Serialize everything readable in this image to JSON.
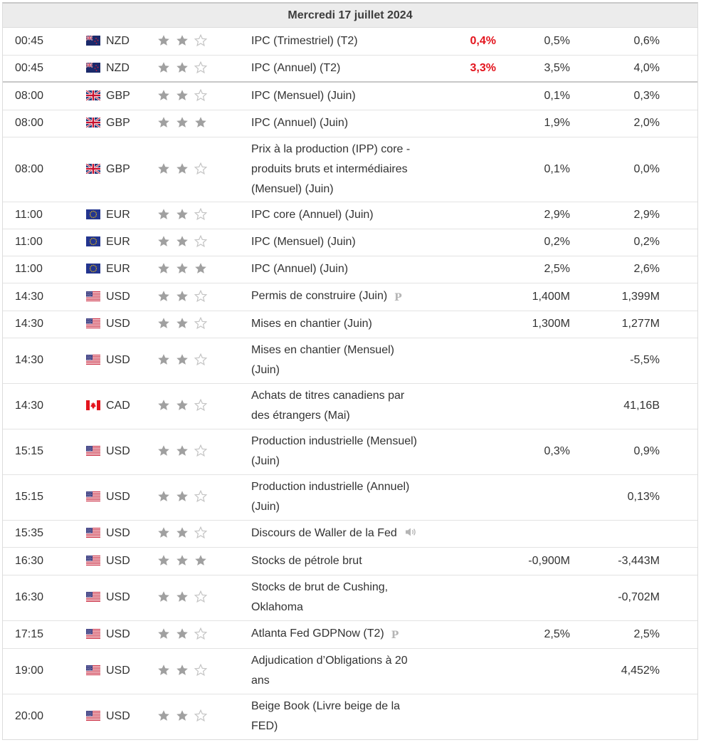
{
  "day_header": "Mercredi 17 juillet 2024",
  "events": [
    {
      "time": "00:45",
      "currency": "NZD",
      "flag": "flag-nz",
      "stars": 2,
      "event": "IPC (Trimestriel) (T2)",
      "actual": "0,4%",
      "forecast": "0,5%",
      "previous": "0,6%"
    },
    {
      "time": "00:45",
      "currency": "NZD",
      "flag": "flag-nz",
      "stars": 2,
      "event": "IPC (Annuel) (T2)",
      "actual": "3,3%",
      "forecast": "3,5%",
      "previous": "4,0%"
    },
    {
      "time": "08:00",
      "currency": "GBP",
      "flag": "flag-gb",
      "stars": 2,
      "event": "IPC (Mensuel) (Juin)",
      "actual": "",
      "forecast": "0,1%",
      "previous": "0,3%"
    },
    {
      "time": "08:00",
      "currency": "GBP",
      "flag": "flag-gb",
      "stars": 3,
      "event": "IPC (Annuel) (Juin)",
      "actual": "",
      "forecast": "1,9%",
      "previous": "2,0%"
    },
    {
      "time": "08:00",
      "currency": "GBP",
      "flag": "flag-gb",
      "stars": 2,
      "event_lines": [
        "Prix à la production (IPP) core -",
        "produits bruts et intermédiaires",
        "(Mensuel) (Juin)"
      ],
      "actual": "",
      "forecast": "0,1%",
      "previous": "0,0%"
    },
    {
      "time": "11:00",
      "currency": "EUR",
      "flag": "flag-eu",
      "stars": 2,
      "event": "IPC core (Annuel) (Juin)",
      "actual": "",
      "forecast": "2,9%",
      "previous": "2,9%"
    },
    {
      "time": "11:00",
      "currency": "EUR",
      "flag": "flag-eu",
      "stars": 2,
      "event": "IPC (Mensuel) (Juin)",
      "actual": "",
      "forecast": "0,2%",
      "previous": "0,2%"
    },
    {
      "time": "11:00",
      "currency": "EUR",
      "flag": "flag-eu",
      "stars": 3,
      "event": "IPC (Annuel) (Juin)",
      "actual": "",
      "forecast": "2,5%",
      "previous": "2,6%"
    },
    {
      "time": "14:30",
      "currency": "USD",
      "flag": "flag-us",
      "stars": 2,
      "event": "Permis de construire (Juin)",
      "preliminary_icon": "P",
      "actual": "",
      "forecast": "1,400M",
      "previous": "1,399M"
    },
    {
      "time": "14:30",
      "currency": "USD",
      "flag": "flag-us",
      "stars": 2,
      "event": "Mises en chantier (Juin)",
      "actual": "",
      "forecast": "1,300M",
      "previous": "1,277M"
    },
    {
      "time": "14:30",
      "currency": "USD",
      "flag": "flag-us",
      "stars": 2,
      "event_lines": [
        "Mises en chantier (Mensuel)",
        "(Juin)"
      ],
      "actual": "",
      "forecast": "",
      "previous": "-5,5%"
    },
    {
      "time": "14:30",
      "currency": "CAD",
      "flag": "flag-ca",
      "stars": 2,
      "event_lines": [
        "Achats de titres canadiens par",
        "des étrangers (Mai)"
      ],
      "actual": "",
      "forecast": "",
      "previous": "41,16B"
    },
    {
      "time": "15:15",
      "currency": "USD",
      "flag": "flag-us",
      "stars": 2,
      "event_lines": [
        "Production industrielle (Mensuel)",
        "(Juin)"
      ],
      "actual": "",
      "forecast": "0,3%",
      "previous": "0,9%"
    },
    {
      "time": "15:15",
      "currency": "USD",
      "flag": "flag-us",
      "stars": 2,
      "event_lines": [
        "Production industrielle (Annuel)",
        "(Juin)"
      ],
      "actual": "",
      "forecast": "",
      "previous": "0,13%"
    },
    {
      "time": "15:35",
      "currency": "USD",
      "flag": "flag-us",
      "stars": 2,
      "event": "Discours de Waller de la Fed",
      "speech_icon": "speaker-icon",
      "actual": "",
      "forecast": "",
      "previous": ""
    },
    {
      "time": "16:30",
      "currency": "USD",
      "flag": "flag-us",
      "stars": 3,
      "event": "Stocks de pétrole brut",
      "actual": "",
      "forecast": "-0,900M",
      "previous": "-3,443M"
    },
    {
      "time": "16:30",
      "currency": "USD",
      "flag": "flag-us",
      "stars": 2,
      "event_lines": [
        "Stocks de brut de Cushing,",
        "Oklahoma"
      ],
      "actual": "",
      "forecast": "",
      "previous": "-0,702M"
    },
    {
      "time": "17:15",
      "currency": "USD",
      "flag": "flag-us",
      "stars": 2,
      "event": "Atlanta Fed GDPNow (T2)",
      "preliminary_icon": "P",
      "actual": "",
      "forecast": "2,5%",
      "previous": "2,5%"
    },
    {
      "time": "19:00",
      "currency": "USD",
      "flag": "flag-us",
      "stars": 2,
      "event_lines": [
        "Adjudication d’Obligations à 20",
        "ans"
      ],
      "actual": "",
      "forecast": "",
      "previous": "4,452%"
    },
    {
      "time": "20:00",
      "currency": "USD",
      "flag": "flag-us",
      "stars": 2,
      "event_lines": [
        "Beige Book (Livre beige de la",
        "FED)"
      ],
      "actual": "",
      "forecast": "",
      "previous": ""
    }
  ],
  "colors": {
    "actual_bad": "#e3141d",
    "star_filled": "#a0a0a0",
    "star_empty": "#c4c4c4"
  }
}
